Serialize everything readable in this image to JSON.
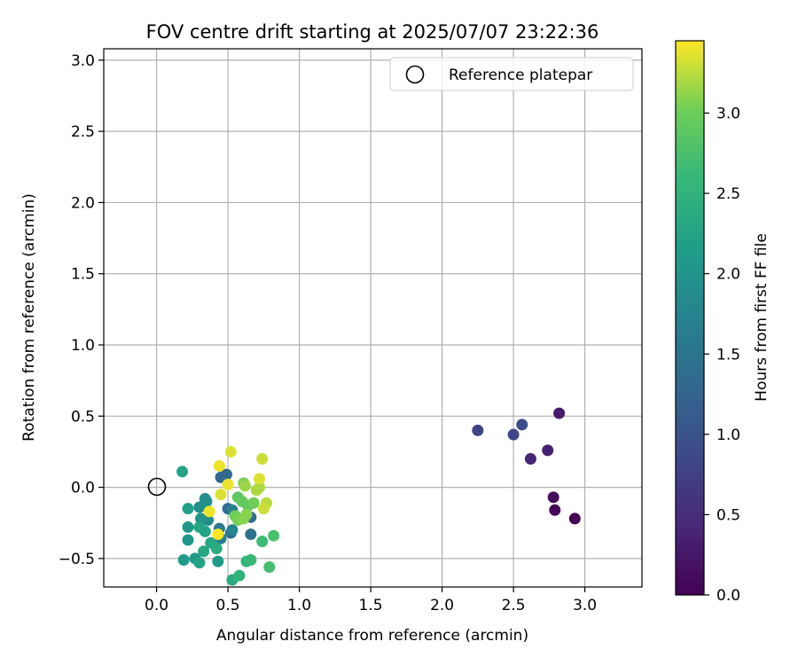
{
  "chart_data": {
    "type": "scatter",
    "title": "FOV centre drift starting at 2025/07/07 23:22:36",
    "xlabel": "Angular distance from reference (arcmin)",
    "ylabel": "Rotation from reference (arcmin)",
    "xlim": [
      -0.37,
      3.4
    ],
    "ylim": [
      -0.7,
      3.08
    ],
    "xticks": [
      0.0,
      0.5,
      1.0,
      1.5,
      2.0,
      2.5,
      3.0
    ],
    "yticks": [
      -0.5,
      0.0,
      0.5,
      1.0,
      1.5,
      2.0,
      2.5,
      3.0
    ],
    "xtick_labels": [
      "0.0",
      "0.5",
      "1.0",
      "1.5",
      "2.0",
      "2.5",
      "3.0"
    ],
    "ytick_labels": [
      "−0.5",
      "0.0",
      "0.5",
      "1.0",
      "1.5",
      "2.0",
      "2.5",
      "3.0"
    ],
    "grid": true,
    "colormap": "viridis",
    "legend": {
      "placement": "top-right",
      "entries": [
        "Reference platepar"
      ]
    },
    "reference_point": {
      "x": 0.0,
      "y": 0.0
    },
    "colorbar": {
      "label": "Hours from first FF file",
      "min": 0.0,
      "max": 3.45,
      "ticks": [
        0.0,
        0.5,
        1.0,
        1.5,
        2.0,
        2.5,
        3.0
      ],
      "tick_labels": [
        "0.0",
        "0.5",
        "1.0",
        "1.5",
        "2.0",
        "2.5",
        "3.0"
      ]
    },
    "points": [
      {
        "x": 2.93,
        "y": -0.22,
        "c": 0.0
      },
      {
        "x": 2.79,
        "y": -0.16,
        "c": 0.06
      },
      {
        "x": 2.78,
        "y": -0.07,
        "c": 0.12
      },
      {
        "x": 2.82,
        "y": 0.52,
        "c": 0.3
      },
      {
        "x": 2.74,
        "y": 0.26,
        "c": 0.35
      },
      {
        "x": 2.62,
        "y": 0.2,
        "c": 0.4
      },
      {
        "x": 2.25,
        "y": 0.4,
        "c": 0.8
      },
      {
        "x": 2.5,
        "y": 0.37,
        "c": 0.85
      },
      {
        "x": 2.56,
        "y": 0.44,
        "c": 0.92
      },
      {
        "x": 0.45,
        "y": 0.07,
        "c": 1.3
      },
      {
        "x": 0.49,
        "y": 0.09,
        "c": 1.35
      },
      {
        "x": 0.5,
        "y": -0.15,
        "c": 1.35
      },
      {
        "x": 0.52,
        "y": -0.32,
        "c": 1.45
      },
      {
        "x": 0.66,
        "y": -0.21,
        "c": 1.4
      },
      {
        "x": 0.66,
        "y": -0.33,
        "c": 1.45
      },
      {
        "x": 0.56,
        "y": -0.21,
        "c": 1.6
      },
      {
        "x": 0.44,
        "y": -0.29,
        "c": 1.6
      },
      {
        "x": 0.45,
        "y": -0.36,
        "c": 1.7
      },
      {
        "x": 0.53,
        "y": -0.3,
        "c": 1.75
      },
      {
        "x": 0.53,
        "y": -0.16,
        "c": 1.7
      },
      {
        "x": 0.36,
        "y": -0.23,
        "c": 1.9
      },
      {
        "x": 0.3,
        "y": -0.14,
        "c": 1.9
      },
      {
        "x": 0.35,
        "y": -0.1,
        "c": 1.95
      },
      {
        "x": 0.34,
        "y": -0.08,
        "c": 1.95
      },
      {
        "x": 0.31,
        "y": -0.22,
        "c": 2.0
      },
      {
        "x": 0.22,
        "y": -0.28,
        "c": 2.05
      },
      {
        "x": 0.22,
        "y": -0.37,
        "c": 2.05
      },
      {
        "x": 0.19,
        "y": -0.51,
        "c": 2.1
      },
      {
        "x": 0.27,
        "y": -0.5,
        "c": 2.1
      },
      {
        "x": 0.43,
        "y": -0.52,
        "c": 2.1
      },
      {
        "x": 0.22,
        "y": -0.15,
        "c": 2.2
      },
      {
        "x": 0.18,
        "y": 0.11,
        "c": 2.25
      },
      {
        "x": 0.3,
        "y": -0.53,
        "c": 2.25
      },
      {
        "x": 0.3,
        "y": -0.28,
        "c": 2.3
      },
      {
        "x": 0.34,
        "y": -0.31,
        "c": 2.25
      },
      {
        "x": 0.38,
        "y": -0.39,
        "c": 2.3
      },
      {
        "x": 0.33,
        "y": -0.45,
        "c": 2.3
      },
      {
        "x": 0.42,
        "y": -0.43,
        "c": 2.4
      },
      {
        "x": 0.53,
        "y": -0.65,
        "c": 2.4
      },
      {
        "x": 0.58,
        "y": -0.62,
        "c": 2.5
      },
      {
        "x": 0.63,
        "y": -0.52,
        "c": 2.55
      },
      {
        "x": 0.66,
        "y": -0.51,
        "c": 2.6
      },
      {
        "x": 0.74,
        "y": -0.38,
        "c": 2.65
      },
      {
        "x": 0.79,
        "y": -0.56,
        "c": 2.7
      },
      {
        "x": 0.82,
        "y": -0.34,
        "c": 2.75
      },
      {
        "x": 0.57,
        "y": -0.07,
        "c": 2.9
      },
      {
        "x": 0.6,
        "y": -0.1,
        "c": 2.95
      },
      {
        "x": 0.64,
        "y": -0.13,
        "c": 2.9
      },
      {
        "x": 0.68,
        "y": -0.11,
        "c": 3.0
      },
      {
        "x": 0.55,
        "y": -0.2,
        "c": 3.0
      },
      {
        "x": 0.57,
        "y": -0.23,
        "c": 3.05
      },
      {
        "x": 0.61,
        "y": -0.22,
        "c": 3.1
      },
      {
        "x": 0.63,
        "y": -0.19,
        "c": 3.1
      },
      {
        "x": 0.61,
        "y": 0.03,
        "c": 3.05
      },
      {
        "x": 0.62,
        "y": 0.01,
        "c": 3.15
      },
      {
        "x": 0.7,
        "y": -0.02,
        "c": 3.2
      },
      {
        "x": 0.72,
        "y": 0.0,
        "c": 3.2
      },
      {
        "x": 0.77,
        "y": -0.11,
        "c": 3.25
      },
      {
        "x": 0.75,
        "y": -0.15,
        "c": 3.3
      },
      {
        "x": 0.72,
        "y": 0.06,
        "c": 3.35
      },
      {
        "x": 0.74,
        "y": 0.2,
        "c": 3.3
      },
      {
        "x": 0.52,
        "y": 0.25,
        "c": 3.35
      },
      {
        "x": 0.44,
        "y": 0.15,
        "c": 3.4
      },
      {
        "x": 0.45,
        "y": -0.05,
        "c": 3.35
      },
      {
        "x": 0.5,
        "y": 0.02,
        "c": 3.4
      },
      {
        "x": 0.37,
        "y": -0.17,
        "c": 3.4
      },
      {
        "x": 0.43,
        "y": -0.33,
        "c": 3.45
      }
    ]
  }
}
